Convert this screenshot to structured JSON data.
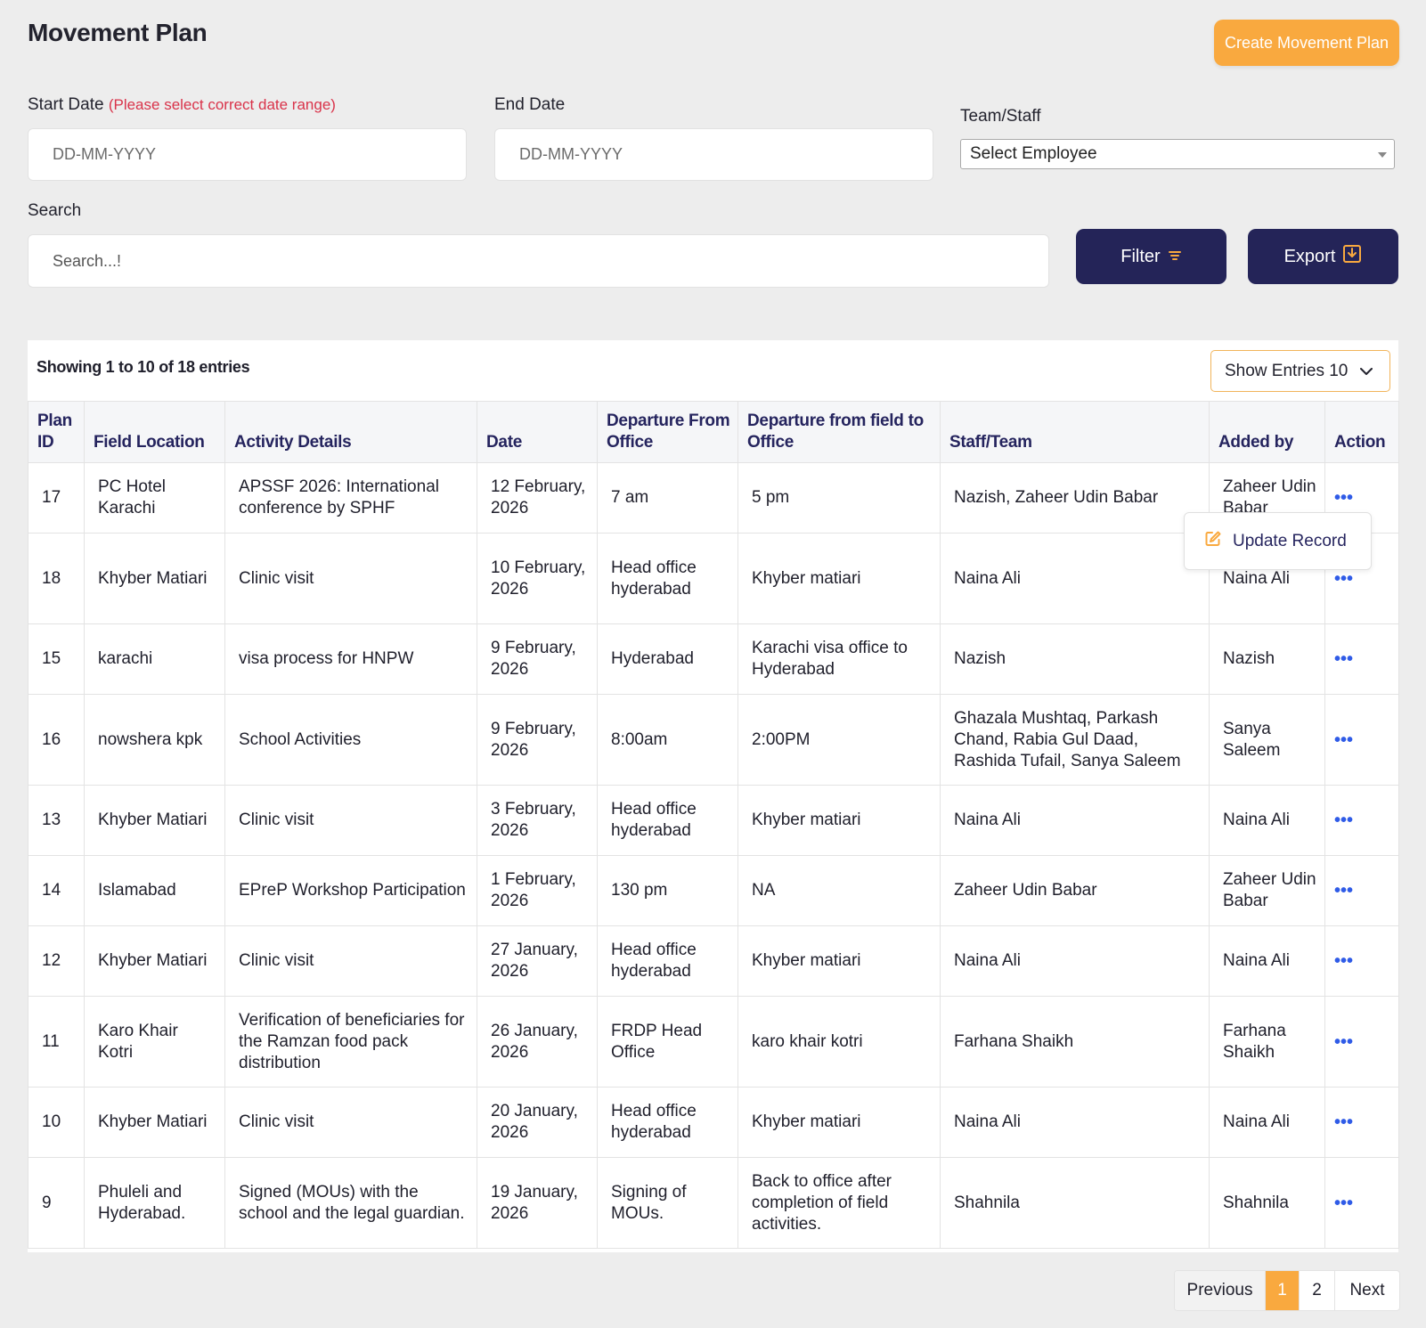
{
  "page": {
    "title": "Movement Plan",
    "create_button": "Create Movement Plan"
  },
  "filters": {
    "start_date_label": "Start Date",
    "start_date_warning": "(Please select correct date range)",
    "start_date_placeholder": "DD-MM-YYYY",
    "end_date_label": "End Date",
    "end_date_placeholder": "DD-MM-YYYY",
    "team_label": "Team/Staff",
    "team_selected": "Select Employee",
    "search_label": "Search",
    "search_placeholder": "Search...!",
    "filter_button": "Filter",
    "export_button": "Export"
  },
  "table": {
    "showing": "Showing 1 to 10 of 18 entries",
    "show_entries": "Show Entries 10",
    "headers": [
      "Plan ID",
      "Field Location",
      "Activity Details",
      "Date",
      "Departure From Office",
      "Departure from field to Office",
      "Staff/Team",
      "Added by",
      "Action"
    ],
    "rows": [
      {
        "id": "17",
        "location": "PC Hotel Karachi",
        "activity": "APSSF 2026: International conference by SPHF",
        "date": "12 February, 2026",
        "dep_office": "7 am",
        "dep_field": "5 pm",
        "staff": "Nazish, Zaheer Udin Babar",
        "added_by": "Zaheer Udin Babar",
        "action": "•••"
      },
      {
        "id": "18",
        "location": "Khyber Matiari",
        "activity": "Clinic visit",
        "date": "10 February, 2026",
        "dep_office": "Head office hyderabad",
        "dep_field": "Khyber matiari",
        "staff": "Naina Ali",
        "added_by": "Naina Ali",
        "action": "•••"
      },
      {
        "id": "15",
        "location": "karachi",
        "activity": "visa process for HNPW",
        "date": "9 February, 2026",
        "dep_office": "Hyderabad",
        "dep_field": "Karachi visa office to Hyderabad",
        "staff": "Nazish",
        "added_by": "Nazish",
        "action": "•••"
      },
      {
        "id": "16",
        "location": "nowshera kpk",
        "activity": "School Activities",
        "date": "9 February, 2026",
        "dep_office": "8:00am",
        "dep_field": "2:00PM",
        "staff": "Ghazala Mushtaq, Parkash Chand, Rabia Gul Daad, Rashida Tufail, Sanya Saleem",
        "added_by": "Sanya Saleem",
        "action": "•••"
      },
      {
        "id": "13",
        "location": "Khyber Matiari",
        "activity": "Clinic visit",
        "date": "3 February, 2026",
        "dep_office": "Head office hyderabad",
        "dep_field": "Khyber matiari",
        "staff": "Naina Ali",
        "added_by": "Naina Ali",
        "action": "•••"
      },
      {
        "id": "14",
        "location": "Islamabad",
        "activity": "EPreP Workshop Participation",
        "date": "1 February, 2026",
        "dep_office": "130 pm",
        "dep_field": "NA",
        "staff": "Zaheer Udin Babar",
        "added_by": "Zaheer Udin Babar",
        "action": "•••"
      },
      {
        "id": "12",
        "location": "Khyber Matiari",
        "activity": "Clinic visit",
        "date": "27 January, 2026",
        "dep_office": "Head office hyderabad",
        "dep_field": "Khyber matiari",
        "staff": "Naina Ali",
        "added_by": "Naina Ali",
        "action": "•••"
      },
      {
        "id": "11",
        "location": "Karo Khair Kotri",
        "activity": "Verification of beneficiaries for the Ramzan food pack distribution",
        "date": "26 January, 2026",
        "dep_office": "FRDP Head Office",
        "dep_field": "karo khair kotri",
        "staff": "Farhana Shaikh",
        "added_by": "Farhana Shaikh",
        "action": "•••"
      },
      {
        "id": "10",
        "location": "Khyber Matiari",
        "activity": "Clinic visit",
        "date": "20 January, 2026",
        "dep_office": "Head office hyderabad",
        "dep_field": "Khyber matiari",
        "staff": "Naina Ali",
        "added_by": "Naina Ali",
        "action": "•••"
      },
      {
        "id": "9",
        "location": "Phuleli and Hyderabad.",
        "activity": "Signed (MOUs) with the school and the legal guardian.",
        "date": "19 January, 2026",
        "dep_office": "Signing of MOUs.",
        "dep_field": "Back to office after completion of field activities.",
        "staff": "Shahnila",
        "added_by": "Shahnila",
        "action": "•••"
      }
    ]
  },
  "popup": {
    "update_record": "Update Record"
  },
  "pagination": {
    "previous": "Previous",
    "pages": [
      "1",
      "2"
    ],
    "current": "1",
    "next": "Next"
  },
  "colors": {
    "accent": "#f9a93f",
    "primary": "#242458",
    "warning": "#d9334a",
    "link": "#2f5be7"
  }
}
